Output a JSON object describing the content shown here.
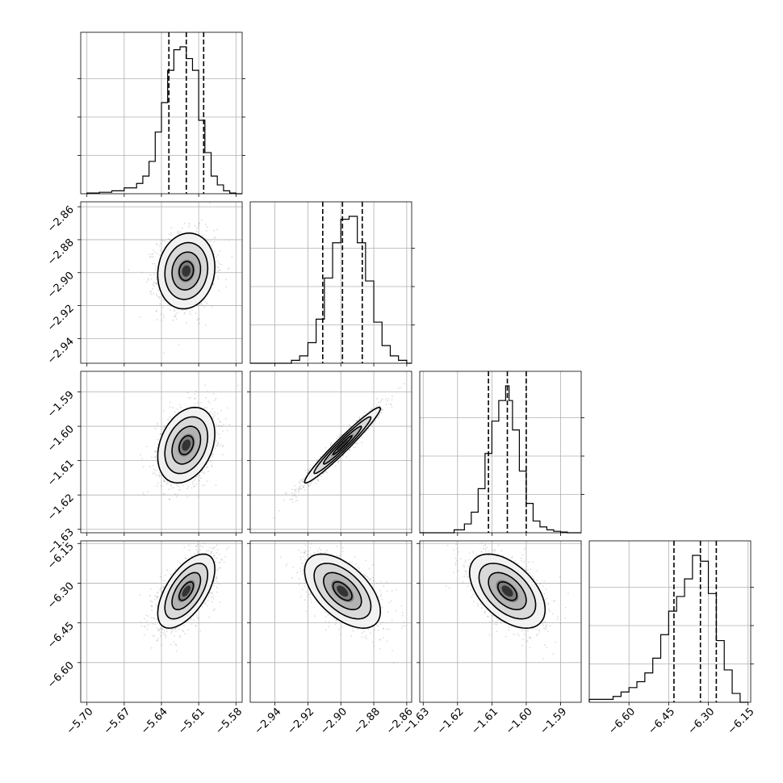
{
  "chart_data": {
    "type": "corner",
    "parameters": [
      {
        "index": 0,
        "range": [
          -5.705,
          -5.575
        ],
        "ticks": [
          -5.7,
          -5.67,
          -5.64,
          -5.61,
          -5.58
        ],
        "tick_labels": [
          "−5.70",
          "−5.67",
          "−5.64",
          "−5.61",
          "−5.58"
        ],
        "median": -5.62,
        "quantiles": [
          -5.634,
          -5.62,
          -5.606
        ],
        "sd": 0.0115,
        "hist_bins": [
          -5.7,
          -5.69,
          -5.68,
          -5.67,
          -5.66,
          -5.655,
          -5.65,
          -5.645,
          -5.64,
          -5.635,
          -5.63,
          -5.625,
          -5.62,
          -5.615,
          -5.61,
          -5.605,
          -5.6,
          -5.595,
          -5.59,
          -5.585,
          -5.58,
          -5.575
        ],
        "hist_counts": [
          0.005,
          0.01,
          0.02,
          0.04,
          0.07,
          0.12,
          0.22,
          0.42,
          0.62,
          0.84,
          0.98,
          1.0,
          0.92,
          0.84,
          0.5,
          0.28,
          0.12,
          0.06,
          0.02,
          0.005,
          0.0
        ]
      },
      {
        "index": 1,
        "range": [
          -2.955,
          -2.857
        ],
        "ticks": [
          -2.94,
          -2.92,
          -2.9,
          -2.88,
          -2.86
        ],
        "tick_labels": [
          "−2.94",
          "−2.92",
          "−2.90",
          "−2.88",
          "−2.86"
        ],
        "median": -2.899,
        "quantiles": [
          -2.911,
          -2.899,
          -2.887
        ],
        "sd": 0.0115,
        "hist_bins": [
          -2.955,
          -2.93,
          -2.925,
          -2.92,
          -2.915,
          -2.91,
          -2.905,
          -2.9,
          -2.895,
          -2.89,
          -2.885,
          -2.88,
          -2.875,
          -2.87,
          -2.865,
          -2.86,
          -2.857
        ],
        "hist_counts": [
          0.0,
          0.02,
          0.05,
          0.14,
          0.3,
          0.58,
          0.82,
          0.98,
          1.0,
          0.82,
          0.56,
          0.28,
          0.12,
          0.05,
          0.02,
          0.0
        ]
      },
      {
        "index": 2,
        "range": [
          -1.631,
          -1.584
        ],
        "ticks": [
          -1.63,
          -1.62,
          -1.61,
          -1.6,
          -1.59
        ],
        "tick_labels": [
          "−1.63",
          "−1.62",
          "−1.61",
          "−1.60",
          "−1.59"
        ],
        "median": -1.6055,
        "quantiles": [
          -1.611,
          -1.6055,
          -1.6
        ],
        "sd": 0.0055,
        "hist_bins": [
          -1.631,
          -1.621,
          -1.618,
          -1.616,
          -1.614,
          -1.612,
          -1.61,
          -1.608,
          -1.606,
          -1.605,
          -1.604,
          -1.602,
          -1.6,
          -1.598,
          -1.596,
          -1.594,
          -1.592,
          -1.59,
          -1.588,
          -1.584
        ],
        "hist_counts": [
          0.0,
          0.02,
          0.06,
          0.14,
          0.3,
          0.54,
          0.76,
          0.9,
          1.0,
          0.9,
          0.7,
          0.42,
          0.2,
          0.08,
          0.04,
          0.02,
          0.01,
          0.005,
          0.0
        ]
      },
      {
        "index": 3,
        "range": [
          -6.75,
          -6.14
        ],
        "ticks": [
          -6.6,
          -6.45,
          -6.3,
          -6.15
        ],
        "tick_labels": [
          "−6.60",
          "−6.45",
          "−6.30",
          "−6.15"
        ],
        "median": -6.33,
        "quantiles": [
          -6.43,
          -6.33,
          -6.27
        ],
        "sd": 0.07,
        "hist_bins": [
          -6.75,
          -6.66,
          -6.63,
          -6.6,
          -6.57,
          -6.54,
          -6.51,
          -6.48,
          -6.45,
          -6.42,
          -6.39,
          -6.36,
          -6.33,
          -6.3,
          -6.27,
          -6.24,
          -6.21,
          -6.18,
          -6.15
        ],
        "hist_counts": [
          0.02,
          0.04,
          0.07,
          0.1,
          0.14,
          0.2,
          0.3,
          0.46,
          0.62,
          0.72,
          0.84,
          1.0,
          0.96,
          0.74,
          0.42,
          0.22,
          0.06,
          0.0
        ]
      }
    ],
    "pairs": [
      {
        "x": 0,
        "y": 1,
        "center": [
          -5.62,
          -2.899
        ],
        "corr": 0.1
      },
      {
        "x": 0,
        "y": 2,
        "center": [
          -5.62,
          -1.6055
        ],
        "corr": 0.3
      },
      {
        "x": 1,
        "y": 2,
        "center": [
          -2.899,
          -1.6055
        ],
        "corr": 0.97
      },
      {
        "x": 0,
        "y": 3,
        "center": [
          -5.62,
          -6.33
        ],
        "corr": 0.6
      },
      {
        "x": 1,
        "y": 3,
        "center": [
          -2.899,
          -6.33
        ],
        "corr": -0.55
      },
      {
        "x": 2,
        "y": 3,
        "center": [
          -1.6055,
          -6.33
        ],
        "corr": -0.5
      }
    ],
    "grid": true,
    "contour_levels_sigma": [
      0.5,
      1.0,
      1.5,
      2.0
    ],
    "colors": {
      "line": "#000000",
      "points": "#9a9a9a",
      "grid": "#b0b0b0"
    }
  }
}
